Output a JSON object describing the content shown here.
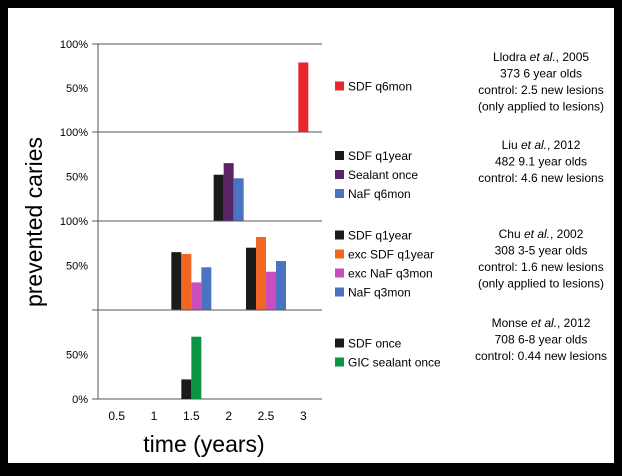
{
  "colors": {
    "background": "#000000",
    "panel": "#ffffff",
    "text": "#000000",
    "red": "#e8262b",
    "black": "#1a1a1a",
    "purple": "#5a2363",
    "blue": "#4c72c4",
    "orange": "#f26522",
    "pink": "#c84fb9",
    "green": "#0b9444"
  },
  "chart_data": {
    "type": "bar",
    "ylabel": "prevented caries",
    "xlabel": "time (years)",
    "x_ticks": [
      "0.5",
      "1",
      "1.5",
      "2",
      "2.5",
      "3"
    ],
    "xlim": [
      0.25,
      3.25
    ],
    "ylim": [
      0,
      100
    ],
    "panels": [
      {
        "y_ticks": [
          "50%",
          "100%"
        ],
        "series": [
          {
            "name": "SDF q6mon",
            "color": "red",
            "points": [
              {
                "x": 3,
                "y": 79
              }
            ]
          }
        ],
        "study": {
          "lines": [
            [
              "Llodra ",
              "et al.",
              ", 2005"
            ],
            [
              "373 6 year olds"
            ],
            [
              "control: 2.5 new lesions"
            ],
            [
              "(only applied to lesions)"
            ]
          ]
        }
      },
      {
        "y_ticks": [
          "50%",
          "100%"
        ],
        "series": [
          {
            "name": "SDF q1year",
            "color": "black",
            "points": [
              {
                "x": 2,
                "y": 52
              }
            ]
          },
          {
            "name": "Sealant once",
            "color": "purple",
            "points": [
              {
                "x": 2,
                "y": 65
              }
            ]
          },
          {
            "name": "NaF q6mon",
            "color": "blue",
            "points": [
              {
                "x": 2,
                "y": 48
              }
            ]
          }
        ],
        "study": {
          "lines": [
            [
              "Liu ",
              "et al.",
              ", 2012"
            ],
            [
              "482 9.1 year olds"
            ],
            [
              "control: 4.6 new lesions"
            ]
          ]
        }
      },
      {
        "y_ticks": [
          "50%",
          "100%"
        ],
        "series": [
          {
            "name": "SDF q1year",
            "color": "black",
            "points": [
              {
                "x": 1.5,
                "y": 65
              },
              {
                "x": 2.5,
                "y": 70
              }
            ]
          },
          {
            "name": "exc SDF q1year",
            "color": "orange",
            "points": [
              {
                "x": 1.5,
                "y": 63
              },
              {
                "x": 2.5,
                "y": 82
              }
            ]
          },
          {
            "name": "exc NaF q3mon",
            "color": "pink",
            "points": [
              {
                "x": 1.5,
                "y": 31
              },
              {
                "x": 2.5,
                "y": 43
              }
            ]
          },
          {
            "name": "NaF q3mon",
            "color": "blue",
            "points": [
              {
                "x": 1.5,
                "y": 48
              },
              {
                "x": 2.5,
                "y": 55
              }
            ]
          }
        ],
        "study": {
          "lines": [
            [
              "Chu ",
              "et al.",
              ", 2002"
            ],
            [
              "308 3-5 year olds"
            ],
            [
              "control: 1.6 new lesions"
            ],
            [
              "(only applied to lesions)"
            ]
          ]
        }
      },
      {
        "y_ticks": [
          "0%",
          "50%"
        ],
        "series": [
          {
            "name": "SDF once",
            "color": "black",
            "points": [
              {
                "x": 1.5,
                "y": 22
              }
            ]
          },
          {
            "name": "GIC sealant once",
            "color": "green",
            "points": [
              {
                "x": 1.5,
                "y": 70
              }
            ]
          }
        ],
        "study": {
          "lines": [
            [
              "Monse ",
              "et al.",
              ", 2012"
            ],
            [
              "708 6-8 year olds"
            ],
            [
              "control: 0.44 new lesions"
            ]
          ]
        }
      }
    ]
  }
}
